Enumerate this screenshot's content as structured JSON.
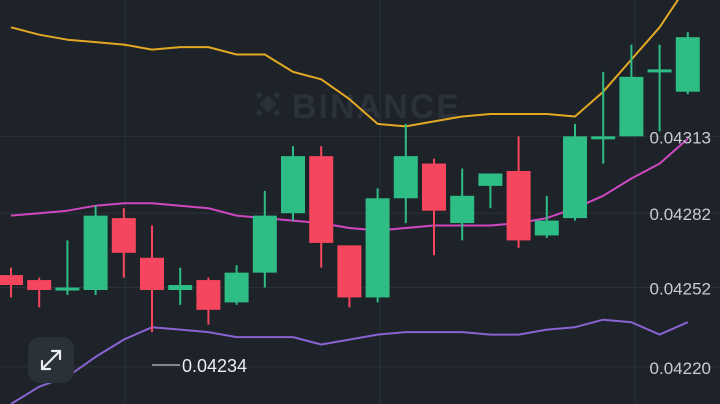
{
  "chart_data": {
    "type": "candlestick",
    "ylim": [
      0.04205,
      0.04368
    ],
    "y_ticks": [
      "0.04313",
      "0.04282",
      "0.04252",
      "0.04220"
    ],
    "annotations": {
      "min_label": "0.04234"
    },
    "watermark": "BINANCE",
    "colors": {
      "up": "#2ebd85",
      "down": "#f6465d",
      "upper_band": "#e2a924",
      "middle_band": "#cf48c2",
      "lower_band": "#8a63d2",
      "background": "#1e2329",
      "grid": "#2b3139"
    },
    "candles": [
      {
        "o": 0.04257,
        "h": 0.0426,
        "l": 0.04248,
        "c": 0.04253
      },
      {
        "o": 0.04255,
        "h": 0.04256,
        "l": 0.04244,
        "c": 0.04251
      },
      {
        "o": 0.04252,
        "h": 0.04271,
        "l": 0.04249,
        "c": 0.04252
      },
      {
        "o": 0.04251,
        "h": 0.04285,
        "l": 0.04249,
        "c": 0.04281
      },
      {
        "o": 0.0428,
        "h": 0.04284,
        "l": 0.04256,
        "c": 0.04266
      },
      {
        "o": 0.04264,
        "h": 0.04277,
        "l": 0.04234,
        "c": 0.04251
      },
      {
        "o": 0.04251,
        "h": 0.0426,
        "l": 0.04245,
        "c": 0.04253
      },
      {
        "o": 0.04255,
        "h": 0.04256,
        "l": 0.04237,
        "c": 0.04243
      },
      {
        "o": 0.04246,
        "h": 0.04261,
        "l": 0.04245,
        "c": 0.04258
      },
      {
        "o": 0.04258,
        "h": 0.04291,
        "l": 0.04252,
        "c": 0.04281
      },
      {
        "o": 0.04282,
        "h": 0.04309,
        "l": 0.04279,
        "c": 0.04305
      },
      {
        "o": 0.04305,
        "h": 0.04309,
        "l": 0.0426,
        "c": 0.0427
      },
      {
        "o": 0.04269,
        "h": 0.04269,
        "l": 0.04244,
        "c": 0.04248
      },
      {
        "o": 0.04248,
        "h": 0.04292,
        "l": 0.04246,
        "c": 0.04288
      },
      {
        "o": 0.04288,
        "h": 0.04318,
        "l": 0.04278,
        "c": 0.04305
      },
      {
        "o": 0.04302,
        "h": 0.04304,
        "l": 0.04265,
        "c": 0.04283
      },
      {
        "o": 0.04278,
        "h": 0.043,
        "l": 0.04271,
        "c": 0.04289
      },
      {
        "o": 0.04293,
        "h": 0.04298,
        "l": 0.04284,
        "c": 0.04298
      },
      {
        "o": 0.04299,
        "h": 0.04313,
        "l": 0.04268,
        "c": 0.04271
      },
      {
        "o": 0.04273,
        "h": 0.04289,
        "l": 0.04272,
        "c": 0.04279
      },
      {
        "o": 0.0428,
        "h": 0.04318,
        "l": 0.04279,
        "c": 0.04313
      },
      {
        "o": 0.04313,
        "h": 0.04339,
        "l": 0.04302,
        "c": 0.04313
      },
      {
        "o": 0.04313,
        "h": 0.0435,
        "l": 0.04313,
        "c": 0.04337
      },
      {
        "o": 0.0434,
        "h": 0.0435,
        "l": 0.04315,
        "c": 0.0434
      },
      {
        "o": 0.04331,
        "h": 0.04355,
        "l": 0.0433,
        "c": 0.04353
      }
    ],
    "bollinger": {
      "upper": [
        0.04357,
        0.04354,
        0.04352,
        0.04351,
        0.0435,
        0.04348,
        0.04349,
        0.04349,
        0.04346,
        0.04346,
        0.04339,
        0.04336,
        0.04328,
        0.04318,
        0.04317,
        0.04319,
        0.04321,
        0.04322,
        0.04322,
        0.04322,
        0.04321,
        0.04331,
        0.04344,
        0.04357,
        0.04374
      ],
      "middle": [
        0.04281,
        0.04282,
        0.04283,
        0.04285,
        0.04286,
        0.04286,
        0.04285,
        0.04284,
        0.04281,
        0.0428,
        0.04279,
        0.04278,
        0.04276,
        0.04275,
        0.04276,
        0.04277,
        0.04277,
        0.04277,
        0.04278,
        0.0428,
        0.04284,
        0.04289,
        0.04296,
        0.04302,
        0.04312
      ],
      "lower": [
        0.04205,
        0.04212,
        0.04216,
        0.04224,
        0.04231,
        0.04236,
        0.04235,
        0.04234,
        0.04232,
        0.04232,
        0.04232,
        0.04229,
        0.04231,
        0.04233,
        0.04234,
        0.04234,
        0.04234,
        0.04233,
        0.04233,
        0.04235,
        0.04236,
        0.04239,
        0.04238,
        0.04233,
        0.04238
      ]
    }
  }
}
